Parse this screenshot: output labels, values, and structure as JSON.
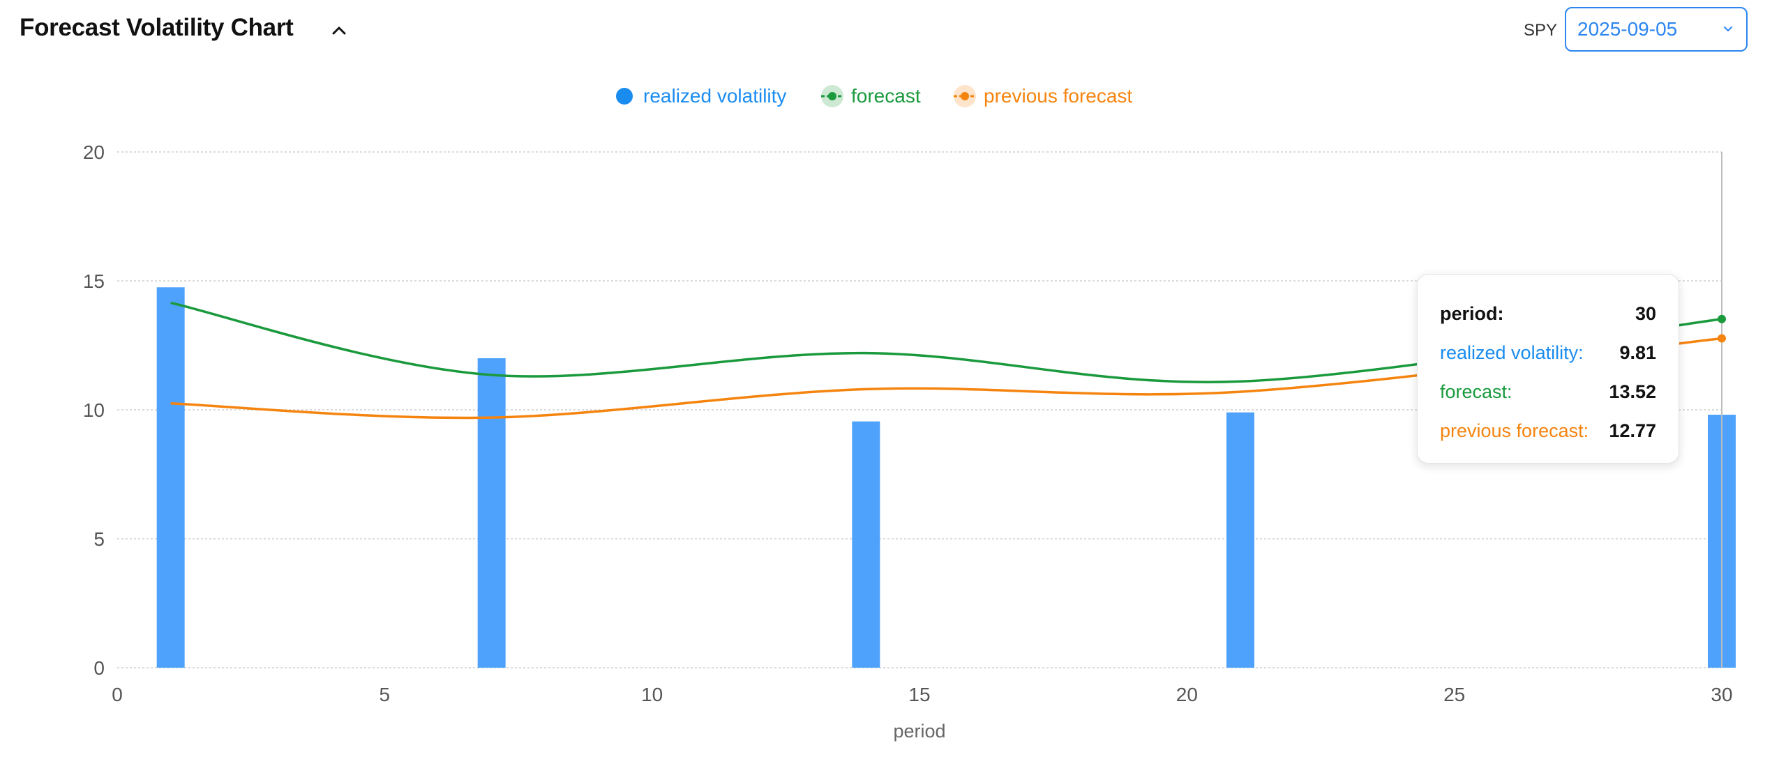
{
  "header": {
    "title": "Forecast Volatility Chart",
    "ticker": "SPY",
    "date": "2025-09-05"
  },
  "colors": {
    "realized": "#4ea2fb",
    "realized_legend": "#1a8cf0",
    "forecast": "#1a9a3d",
    "previous": "#f5840f"
  },
  "legend": [
    {
      "label": "realized volatility",
      "key": "realized"
    },
    {
      "label": "forecast",
      "key": "forecast"
    },
    {
      "label": "previous forecast",
      "key": "previous"
    }
  ],
  "tooltip": {
    "period_label": "period:",
    "period_value": "30",
    "realized_label": "realized volatility:",
    "realized_value": "9.81",
    "forecast_label": "forecast:",
    "forecast_value": "13.52",
    "previous_label": "previous forecast:",
    "previous_value": "12.77"
  },
  "chart_data": {
    "type": "bar+line",
    "xlabel": "period",
    "ylabel": "",
    "xlim": [
      0,
      30
    ],
    "ylim": [
      0,
      20
    ],
    "x_ticks": [
      0,
      5,
      10,
      15,
      20,
      25,
      30
    ],
    "y_ticks": [
      0,
      5,
      10,
      15,
      20
    ],
    "grid": true,
    "legend_position": "top-center",
    "bars": {
      "name": "realized volatility",
      "x": [
        1,
        7,
        14,
        21,
        30
      ],
      "values": [
        14.75,
        12.0,
        9.55,
        9.9,
        9.81
      ]
    },
    "series": [
      {
        "name": "forecast",
        "x": [
          1,
          7,
          14,
          21,
          30
        ],
        "values": [
          14.15,
          11.35,
          12.2,
          11.1,
          13.52
        ]
      },
      {
        "name": "previous forecast",
        "x": [
          1,
          7,
          14,
          21,
          30
        ],
        "values": [
          10.25,
          9.7,
          10.8,
          10.7,
          12.77
        ]
      }
    ],
    "hover_x": 30
  }
}
